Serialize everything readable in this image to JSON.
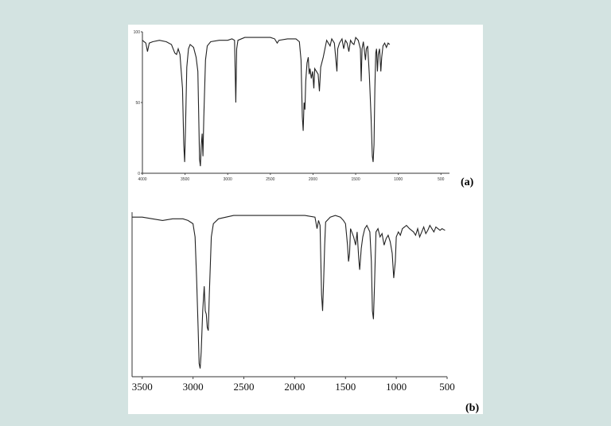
{
  "chart_data": [
    {
      "type": "line",
      "panel_label": "(a)",
      "x_ticks": [
        4000,
        3500,
        3000,
        2500,
        2000,
        1500,
        1000,
        500
      ],
      "x_tick_labels": [
        "4000",
        "3500",
        "3000",
        "2500",
        "2000",
        "1500",
        "1000",
        "500"
      ],
      "y_ticks": [
        0,
        50,
        100
      ],
      "y_tick_labels": [
        "0",
        "50",
        "100"
      ],
      "xlim": [
        4000,
        400
      ],
      "ylim": [
        0,
        100
      ],
      "points": [
        [
          4000,
          94
        ],
        [
          3960,
          92
        ],
        [
          3940,
          86
        ],
        [
          3920,
          92
        ],
        [
          3880,
          93
        ],
        [
          3800,
          94
        ],
        [
          3720,
          93
        ],
        [
          3660,
          91
        ],
        [
          3620,
          85
        ],
        [
          3600,
          84
        ],
        [
          3580,
          88
        ],
        [
          3560,
          84
        ],
        [
          3530,
          60
        ],
        [
          3515,
          20
        ],
        [
          3505,
          8
        ],
        [
          3495,
          30
        ],
        [
          3480,
          75
        ],
        [
          3460,
          88
        ],
        [
          3440,
          91
        ],
        [
          3400,
          89
        ],
        [
          3370,
          82
        ],
        [
          3350,
          72
        ],
        [
          3340,
          40
        ],
        [
          3330,
          10
        ],
        [
          3320,
          5
        ],
        [
          3310,
          20
        ],
        [
          3300,
          28
        ],
        [
          3290,
          12
        ],
        [
          3280,
          40
        ],
        [
          3260,
          80
        ],
        [
          3240,
          90
        ],
        [
          3200,
          93
        ],
        [
          3100,
          94
        ],
        [
          3000,
          94
        ],
        [
          2950,
          95
        ],
        [
          2920,
          94
        ],
        [
          2905,
          50
        ],
        [
          2895,
          88
        ],
        [
          2880,
          94
        ],
        [
          2800,
          96
        ],
        [
          2700,
          96
        ],
        [
          2600,
          96
        ],
        [
          2500,
          96
        ],
        [
          2450,
          95
        ],
        [
          2420,
          92
        ],
        [
          2400,
          94
        ],
        [
          2300,
          95
        ],
        [
          2200,
          95
        ],
        [
          2160,
          93
        ],
        [
          2140,
          80
        ],
        [
          2125,
          40
        ],
        [
          2115,
          30
        ],
        [
          2105,
          50
        ],
        [
          2095,
          45
        ],
        [
          2085,
          65
        ],
        [
          2070,
          78
        ],
        [
          2055,
          82
        ],
        [
          2045,
          70
        ],
        [
          2035,
          74
        ],
        [
          2020,
          67
        ],
        [
          2005,
          72
        ],
        [
          1990,
          60
        ],
        [
          1980,
          74
        ],
        [
          1960,
          72
        ],
        [
          1940,
          70
        ],
        [
          1925,
          58
        ],
        [
          1910,
          75
        ],
        [
          1880,
          82
        ],
        [
          1840,
          94
        ],
        [
          1800,
          90
        ],
        [
          1780,
          95
        ],
        [
          1750,
          92
        ],
        [
          1720,
          72
        ],
        [
          1710,
          88
        ],
        [
          1690,
          92
        ],
        [
          1660,
          95
        ],
        [
          1640,
          88
        ],
        [
          1620,
          94
        ],
        [
          1600,
          92
        ],
        [
          1580,
          86
        ],
        [
          1560,
          94
        ],
        [
          1540,
          92
        ],
        [
          1520,
          91
        ],
        [
          1500,
          96
        ],
        [
          1470,
          94
        ],
        [
          1445,
          88
        ],
        [
          1435,
          65
        ],
        [
          1425,
          88
        ],
        [
          1410,
          93
        ],
        [
          1400,
          88
        ],
        [
          1385,
          80
        ],
        [
          1375,
          88
        ],
        [
          1360,
          90
        ],
        [
          1340,
          70
        ],
        [
          1320,
          40
        ],
        [
          1305,
          12
        ],
        [
          1295,
          8
        ],
        [
          1285,
          20
        ],
        [
          1275,
          60
        ],
        [
          1265,
          85
        ],
        [
          1255,
          88
        ],
        [
          1245,
          72
        ],
        [
          1235,
          84
        ],
        [
          1220,
          88
        ],
        [
          1205,
          72
        ],
        [
          1195,
          82
        ],
        [
          1180,
          90
        ],
        [
          1160,
          92
        ],
        [
          1140,
          89
        ],
        [
          1120,
          92
        ],
        [
          1100,
          91
        ]
      ]
    },
    {
      "type": "line",
      "panel_label": "(b)",
      "x_ticks": [
        3500,
        3000,
        2500,
        2000,
        1500,
        1000,
        500
      ],
      "x_tick_labels": [
        "3500",
        "3000",
        "2500",
        "2000",
        "1500",
        "1000",
        "500"
      ],
      "xlim": [
        3600,
        500
      ],
      "ylim": [
        0,
        100
      ],
      "points": [
        [
          3600,
          97
        ],
        [
          3500,
          97
        ],
        [
          3400,
          96
        ],
        [
          3300,
          95
        ],
        [
          3200,
          96
        ],
        [
          3100,
          96
        ],
        [
          3050,
          95
        ],
        [
          3000,
          93
        ],
        [
          2980,
          85
        ],
        [
          2965,
          60
        ],
        [
          2950,
          30
        ],
        [
          2940,
          8
        ],
        [
          2930,
          5
        ],
        [
          2920,
          15
        ],
        [
          2905,
          40
        ],
        [
          2890,
          55
        ],
        [
          2880,
          40
        ],
        [
          2870,
          38
        ],
        [
          2860,
          30
        ],
        [
          2850,
          28
        ],
        [
          2840,
          50
        ],
        [
          2820,
          85
        ],
        [
          2800,
          93
        ],
        [
          2750,
          96
        ],
        [
          2600,
          98
        ],
        [
          2400,
          98
        ],
        [
          2200,
          98
        ],
        [
          2000,
          98
        ],
        [
          1900,
          98
        ],
        [
          1800,
          97
        ],
        [
          1780,
          90
        ],
        [
          1765,
          95
        ],
        [
          1750,
          92
        ],
        [
          1735,
          50
        ],
        [
          1725,
          40
        ],
        [
          1715,
          58
        ],
        [
          1705,
          80
        ],
        [
          1695,
          94
        ],
        [
          1650,
          97
        ],
        [
          1600,
          98
        ],
        [
          1550,
          97
        ],
        [
          1520,
          95
        ],
        [
          1500,
          93
        ],
        [
          1480,
          80
        ],
        [
          1470,
          70
        ],
        [
          1460,
          75
        ],
        [
          1450,
          90
        ],
        [
          1420,
          85
        ],
        [
          1400,
          80
        ],
        [
          1385,
          88
        ],
        [
          1370,
          72
        ],
        [
          1360,
          65
        ],
        [
          1345,
          78
        ],
        [
          1330,
          85
        ],
        [
          1310,
          90
        ],
        [
          1290,
          92
        ],
        [
          1260,
          88
        ],
        [
          1245,
          70
        ],
        [
          1235,
          40
        ],
        [
          1225,
          35
        ],
        [
          1215,
          55
        ],
        [
          1200,
          88
        ],
        [
          1180,
          90
        ],
        [
          1160,
          85
        ],
        [
          1140,
          87
        ],
        [
          1120,
          80
        ],
        [
          1100,
          84
        ],
        [
          1080,
          86
        ],
        [
          1060,
          82
        ],
        [
          1040,
          75
        ],
        [
          1025,
          60
        ],
        [
          1010,
          70
        ],
        [
          1000,
          85
        ],
        [
          980,
          88
        ],
        [
          960,
          86
        ],
        [
          940,
          90
        ],
        [
          900,
          92
        ],
        [
          870,
          90
        ],
        [
          850,
          89
        ],
        [
          830,
          88
        ],
        [
          810,
          86
        ],
        [
          790,
          90
        ],
        [
          770,
          85
        ],
        [
          750,
          88
        ],
        [
          730,
          91
        ],
        [
          710,
          87
        ],
        [
          690,
          89
        ],
        [
          670,
          92
        ],
        [
          650,
          90
        ],
        [
          630,
          88
        ],
        [
          610,
          91
        ],
        [
          590,
          90
        ],
        [
          570,
          89
        ],
        [
          550,
          90
        ],
        [
          520,
          89
        ]
      ]
    }
  ]
}
